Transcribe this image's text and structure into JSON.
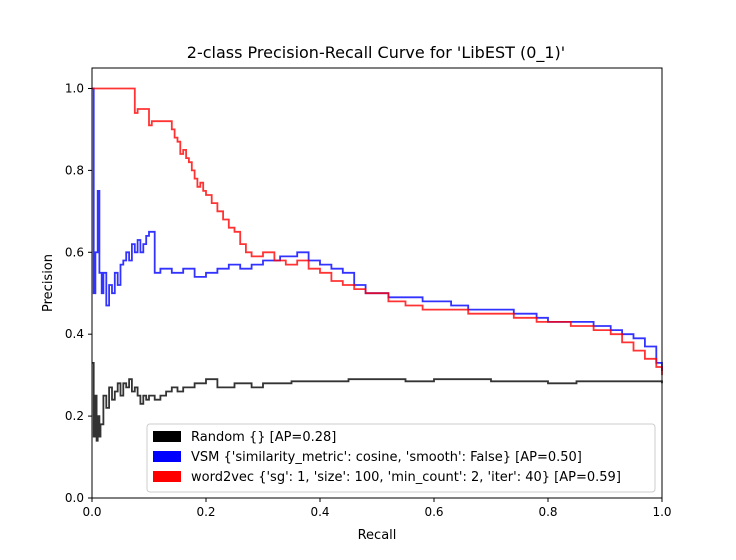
{
  "chart_data": {
    "type": "line",
    "title": "2-class Precision-Recall Curve for 'LibEST (0_1)'",
    "xlabel": "Recall",
    "ylabel": "Precision",
    "xlim": [
      0,
      1
    ],
    "ylim": [
      0,
      1.05
    ],
    "x_ticks": [
      "0.0",
      "0.2",
      "0.4",
      "0.6",
      "0.8",
      "1.0"
    ],
    "y_ticks": [
      "0.0",
      "0.2",
      "0.4",
      "0.6",
      "0.8",
      "1.0"
    ],
    "grid": false,
    "legend_position": "lower-right",
    "series": [
      {
        "name": "Random {} [AP=0.28]",
        "color": "#000000",
        "step": true,
        "x": [
          0.0,
          0.003,
          0.005,
          0.008,
          0.01,
          0.013,
          0.015,
          0.02,
          0.025,
          0.03,
          0.035,
          0.04,
          0.045,
          0.05,
          0.055,
          0.06,
          0.065,
          0.07,
          0.075,
          0.08,
          0.085,
          0.09,
          0.095,
          0.1,
          0.11,
          0.12,
          0.13,
          0.14,
          0.15,
          0.16,
          0.18,
          0.2,
          0.22,
          0.25,
          0.28,
          0.3,
          0.35,
          0.4,
          0.45,
          0.5,
          0.55,
          0.6,
          0.65,
          0.7,
          0.75,
          0.8,
          0.85,
          0.9,
          0.95,
          1.0
        ],
        "y": [
          0.33,
          0.15,
          0.25,
          0.14,
          0.2,
          0.15,
          0.18,
          0.25,
          0.22,
          0.27,
          0.24,
          0.26,
          0.28,
          0.25,
          0.28,
          0.27,
          0.29,
          0.26,
          0.27,
          0.25,
          0.23,
          0.25,
          0.24,
          0.25,
          0.24,
          0.25,
          0.26,
          0.27,
          0.26,
          0.27,
          0.28,
          0.29,
          0.27,
          0.28,
          0.27,
          0.28,
          0.285,
          0.285,
          0.29,
          0.29,
          0.285,
          0.29,
          0.29,
          0.285,
          0.285,
          0.28,
          0.285,
          0.285,
          0.285,
          0.28
        ]
      },
      {
        "name": "VSM {'similarity_metric': cosine, 'smooth': False} [AP=0.50]",
        "color": "#0000ff",
        "step": true,
        "x": [
          0.0,
          0.003,
          0.006,
          0.01,
          0.013,
          0.017,
          0.02,
          0.025,
          0.03,
          0.035,
          0.04,
          0.045,
          0.05,
          0.055,
          0.06,
          0.065,
          0.07,
          0.075,
          0.08,
          0.085,
          0.09,
          0.095,
          0.1,
          0.11,
          0.12,
          0.14,
          0.16,
          0.18,
          0.2,
          0.22,
          0.24,
          0.26,
          0.28,
          0.3,
          0.33,
          0.36,
          0.38,
          0.4,
          0.42,
          0.44,
          0.46,
          0.48,
          0.5,
          0.52,
          0.55,
          0.58,
          0.6,
          0.63,
          0.66,
          0.7,
          0.74,
          0.78,
          0.8,
          0.84,
          0.88,
          0.91,
          0.93,
          0.95,
          0.97,
          0.99,
          1.0
        ],
        "y": [
          1.0,
          0.5,
          0.6,
          0.75,
          0.55,
          0.5,
          0.55,
          0.47,
          0.52,
          0.5,
          0.55,
          0.52,
          0.57,
          0.58,
          0.6,
          0.58,
          0.62,
          0.6,
          0.63,
          0.6,
          0.62,
          0.64,
          0.65,
          0.55,
          0.56,
          0.55,
          0.56,
          0.54,
          0.55,
          0.56,
          0.57,
          0.56,
          0.57,
          0.58,
          0.59,
          0.6,
          0.58,
          0.57,
          0.56,
          0.55,
          0.52,
          0.5,
          0.5,
          0.49,
          0.49,
          0.48,
          0.48,
          0.47,
          0.46,
          0.46,
          0.45,
          0.44,
          0.43,
          0.43,
          0.42,
          0.41,
          0.4,
          0.39,
          0.37,
          0.33,
          0.31
        ]
      },
      {
        "name": "word2vec {'sg': 1, 'size': 100, 'min_count': 2, 'iter': 40} [AP=0.59]",
        "color": "#ff0000",
        "step": true,
        "x": [
          0.0,
          0.075,
          0.08,
          0.1,
          0.105,
          0.14,
          0.145,
          0.15,
          0.155,
          0.16,
          0.165,
          0.17,
          0.175,
          0.18,
          0.185,
          0.19,
          0.195,
          0.2,
          0.21,
          0.22,
          0.23,
          0.24,
          0.25,
          0.26,
          0.27,
          0.28,
          0.3,
          0.32,
          0.34,
          0.36,
          0.38,
          0.4,
          0.42,
          0.44,
          0.46,
          0.48,
          0.5,
          0.52,
          0.55,
          0.58,
          0.6,
          0.63,
          0.66,
          0.7,
          0.74,
          0.78,
          0.8,
          0.84,
          0.88,
          0.91,
          0.93,
          0.95,
          0.97,
          0.99,
          1.0
        ],
        "y": [
          1.0,
          0.94,
          0.95,
          0.91,
          0.92,
          0.9,
          0.88,
          0.87,
          0.84,
          0.85,
          0.83,
          0.82,
          0.8,
          0.78,
          0.76,
          0.77,
          0.75,
          0.74,
          0.72,
          0.7,
          0.68,
          0.66,
          0.65,
          0.62,
          0.6,
          0.59,
          0.6,
          0.58,
          0.57,
          0.58,
          0.56,
          0.55,
          0.53,
          0.52,
          0.51,
          0.5,
          0.5,
          0.48,
          0.47,
          0.46,
          0.46,
          0.46,
          0.45,
          0.45,
          0.44,
          0.43,
          0.43,
          0.42,
          0.41,
          0.4,
          0.38,
          0.36,
          0.34,
          0.32,
          0.3
        ]
      }
    ]
  }
}
